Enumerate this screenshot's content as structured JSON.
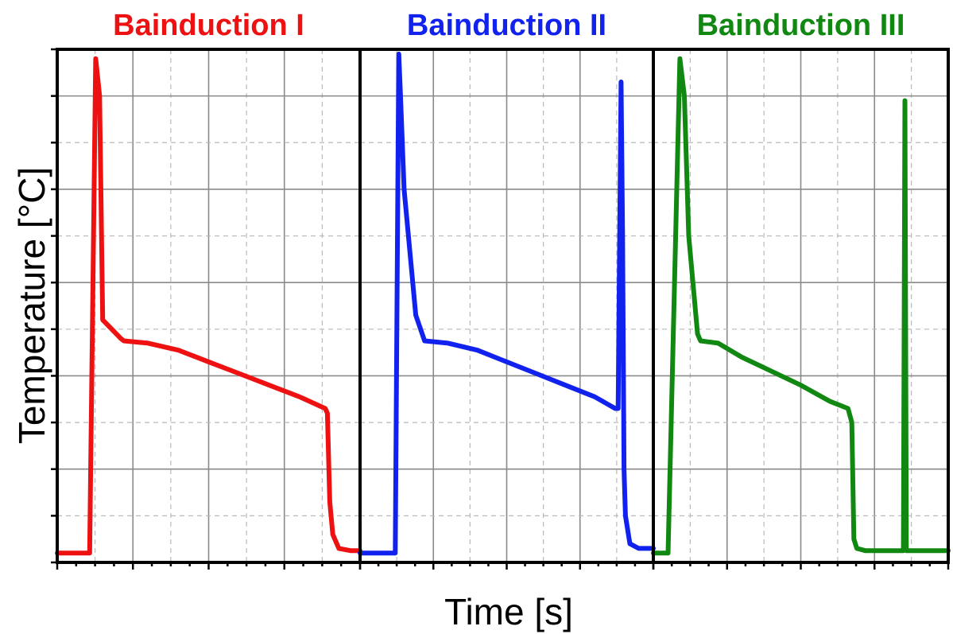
{
  "figure": {
    "xlabel": "Time [s]",
    "ylabel": "Temperature [°C]"
  },
  "chart_data": [
    {
      "type": "line",
      "title": "Bainduction I",
      "color": "#ee1111",
      "ylim": [
        0,
        1100
      ],
      "xlim": [
        0,
        100
      ],
      "grid": true,
      "series": [
        {
          "x": [
            0,
            10.7,
            12.7,
            14,
            15,
            21,
            22,
            30,
            40,
            50,
            60,
            70,
            80,
            88.5,
            89.2,
            90,
            91,
            93,
            97,
            100
          ],
          "y": [
            20,
            20,
            1080,
            1000,
            520,
            480,
            475,
            470,
            455,
            430,
            405,
            380,
            355,
            330,
            320,
            130,
            60,
            30,
            25,
            25
          ]
        }
      ]
    },
    {
      "type": "line",
      "title": "Bainduction II",
      "color": "#1122ee",
      "ylim": [
        0,
        1100
      ],
      "xlim": [
        0,
        100
      ],
      "grid": true,
      "series": [
        {
          "x": [
            0,
            12,
            13.2,
            13.8,
            15,
            19,
            22,
            30,
            40,
            50,
            60,
            70,
            80,
            87,
            88,
            89,
            89.5,
            90,
            90.5,
            92,
            95,
            100
          ],
          "y": [
            20,
            20,
            1090,
            1000,
            800,
            530,
            475,
            470,
            455,
            430,
            405,
            380,
            355,
            330,
            330,
            1030,
            700,
            200,
            100,
            40,
            30,
            30
          ]
        }
      ]
    },
    {
      "type": "line",
      "title": "Bainduction III",
      "color": "#118811",
      "ylim": [
        0,
        1100
      ],
      "xlim": [
        0,
        100
      ],
      "grid": true,
      "series": [
        {
          "x": [
            0,
            5,
            9,
            10.5,
            12,
            15,
            16,
            22,
            30,
            40,
            50,
            60,
            66,
            67.3,
            68,
            69,
            72,
            84,
            84.8,
            85.3,
            85.8,
            86.2,
            87,
            100
          ],
          "y": [
            20,
            20,
            1080,
            1000,
            700,
            490,
            475,
            470,
            440,
            410,
            380,
            345,
            330,
            300,
            50,
            30,
            25,
            25,
            25,
            990,
            25,
            25,
            25,
            25
          ]
        }
      ]
    }
  ]
}
